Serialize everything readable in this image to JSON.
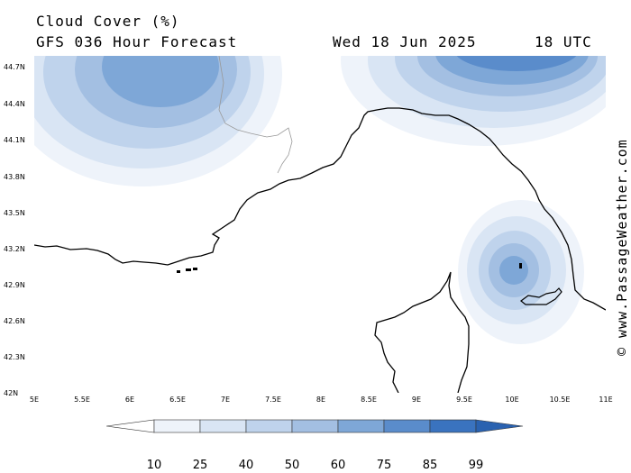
{
  "header": {
    "title": "Cloud Cover (%)",
    "subtitle": "GFS 036 Hour Forecast",
    "date": "Wed 18 Jun 2025",
    "time": "18 UTC"
  },
  "credit": "© www.PassageWeather.com",
  "map": {
    "lat_labels": [
      "44.7N",
      "44.4N",
      "44.1N",
      "43.8N",
      "43.5N",
      "43.2N",
      "42.9N",
      "42.6N",
      "42.3N",
      "42N"
    ],
    "lon_labels": [
      "5E",
      "5.5E",
      "6E",
      "6.5E",
      "7E",
      "7.5E",
      "8E",
      "8.5E",
      "9E",
      "9.5E",
      "10E",
      "10.5E",
      "11E"
    ]
  },
  "legend": {
    "labels": [
      "10",
      "25",
      "40",
      "50",
      "60",
      "75",
      "85",
      "99"
    ],
    "colors": [
      "#ffffff",
      "#eef3fa",
      "#d9e5f4",
      "#bfd3ec",
      "#a3bfe2",
      "#7ea7d7",
      "#5a8ccb",
      "#3a73bf",
      "#2a62b0"
    ]
  },
  "colors": {
    "land_line": "#000000",
    "border_line": "#999999"
  }
}
